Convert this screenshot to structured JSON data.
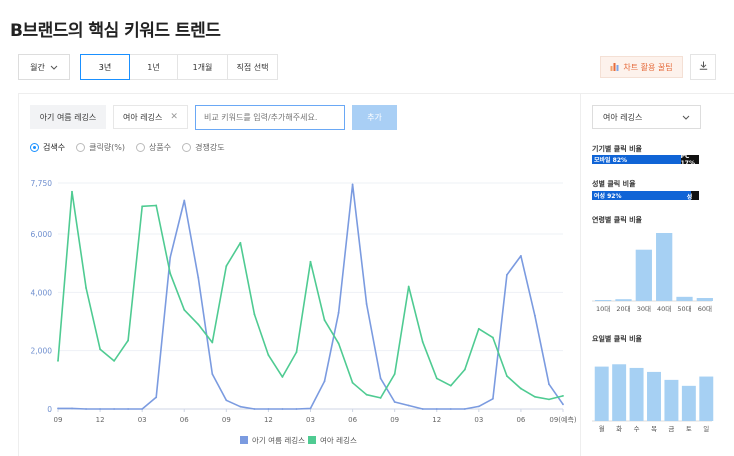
{
  "header": {
    "title": "B브랜드의 핵심 키워드 트렌드"
  },
  "controls": {
    "period_select": "월간",
    "ranges": [
      {
        "label": "3년",
        "active": true
      },
      {
        "label": "1년",
        "active": false
      },
      {
        "label": "1개월",
        "active": false
      },
      {
        "label": "직접 선택",
        "active": false
      }
    ],
    "chart_guide_label": "차트 활용 꿀팁"
  },
  "keywords": {
    "chip1": "아기 여름 레깅스",
    "chip2": "여아 레깅스",
    "compare_placeholder": "비교 키워드를 입력/추가해주세요.",
    "add_label": "추가"
  },
  "metrics": [
    {
      "label": "검색수",
      "active": true
    },
    {
      "label": "클릭량(%)",
      "active": false
    },
    {
      "label": "상품수",
      "active": false
    },
    {
      "label": "경쟁강도",
      "active": false
    }
  ],
  "colors": {
    "series1": "#7b9be0",
    "series2": "#4fcb92",
    "accent": "#1a90ff",
    "axis_label": "#6f8fcf"
  },
  "chart_data": {
    "type": "line",
    "y_ticks": [
      "0",
      "2,000",
      "4,000",
      "6,000",
      "7,750"
    ],
    "ylim": [
      0,
      7750
    ],
    "x_tick_labels": [
      "09",
      "12",
      "03",
      "06",
      "09",
      "12",
      "03",
      "06",
      "09",
      "12",
      "03",
      "06",
      "09(예측)"
    ],
    "x_tick_index": [
      0,
      3,
      6,
      9,
      12,
      15,
      18,
      21,
      24,
      27,
      30,
      33,
      36
    ],
    "legend_position": "bottom",
    "series": [
      {
        "name": "아기 여름 레깅스",
        "color": "#7b9be0",
        "values": [
          20,
          20,
          0,
          0,
          0,
          0,
          0,
          400,
          5200,
          7150,
          4500,
          1200,
          300,
          80,
          0,
          0,
          0,
          0,
          20,
          950,
          3300,
          7700,
          3600,
          1050,
          240,
          120,
          0,
          0,
          0,
          0,
          90,
          350,
          4600,
          5250,
          3200,
          850,
          160
        ]
      },
      {
        "name": "여아 레깅스",
        "color": "#4fcb92",
        "values": [
          1650,
          7450,
          4150,
          2050,
          1650,
          2350,
          6950,
          6980,
          4650,
          3400,
          2900,
          2280,
          4900,
          5700,
          3250,
          1850,
          1100,
          1950,
          5050,
          3050,
          2250,
          900,
          490,
          380,
          1200,
          4200,
          2300,
          1050,
          800,
          1350,
          2750,
          2450,
          1130,
          700,
          420,
          330,
          450
        ]
      }
    ]
  },
  "side": {
    "select_label": "여아 레깅스",
    "device": {
      "title": "기기별 클릭 비율",
      "a_label": "모바일 82%",
      "a_value": 82,
      "b_label": "PC 17%",
      "b_value": 17
    },
    "gender": {
      "title": "성별 클릭 비율",
      "a_label": "여성 92%",
      "a_value": 92,
      "b_label": "남성 7%",
      "b_value": 7
    },
    "age": {
      "title": "연령별 클릭 비율",
      "categories": [
        "10대",
        "20대",
        "30대",
        "40대",
        "50대",
        "60대"
      ],
      "values": [
        0.5,
        1.5,
        43,
        57,
        3.5,
        2.5
      ]
    },
    "weekday": {
      "title": "요일별 클릭 비율",
      "categories": [
        "월",
        "화",
        "수",
        "목",
        "금",
        "토",
        "일"
      ],
      "values": [
        16.4,
        17.1,
        16.0,
        14.8,
        12.4,
        10.6,
        13.4
      ]
    }
  }
}
